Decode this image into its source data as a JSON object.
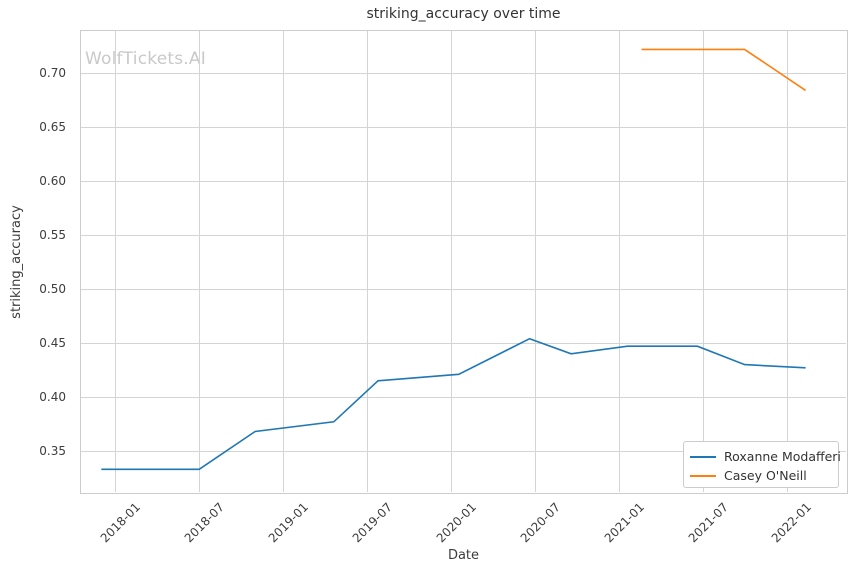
{
  "chart_data": {
    "type": "line",
    "title": "striking_accuracy over time",
    "xlabel": "Date",
    "ylabel": "striking_accuracy",
    "watermark": "WolfTickets.AI",
    "grid": true,
    "legend_position": "lower right",
    "x_tick_labels": [
      "2018-01",
      "2018-07",
      "2019-01",
      "2019-07",
      "2020-01",
      "2020-07",
      "2021-01",
      "2021-07",
      "2022-01"
    ],
    "y_tick_labels": [
      "0.35",
      "0.40",
      "0.45",
      "0.50",
      "0.55",
      "0.60",
      "0.65",
      "0.70"
    ],
    "xlim": [
      2017.79,
      2022.36
    ],
    "ylim": [
      0.311,
      0.74
    ],
    "grid_color": "#d4d4d4",
    "spine_color": "#cccccc",
    "series": [
      {
        "name": "Roxanne Modafferi",
        "color": "#1f77b4",
        "points": [
          [
            "2017-12",
            0.333
          ],
          [
            "2018-07",
            0.333
          ],
          [
            "2018-11",
            0.368
          ],
          [
            "2019-04-20",
            0.377
          ],
          [
            "2019-07-25",
            0.415
          ],
          [
            "2020-01-18",
            0.421
          ],
          [
            "2020-06-20",
            0.454
          ],
          [
            "2020-09-19",
            0.44
          ],
          [
            "2021-01-20",
            0.447
          ],
          [
            "2021-06-20",
            0.447
          ],
          [
            "2021-10",
            0.43
          ],
          [
            "2022-02-12",
            0.427
          ]
        ]
      },
      {
        "name": "Casey O'Neill",
        "color": "#ff7f0e",
        "points": [
          [
            "2021-02-20",
            0.722
          ],
          [
            "2021-10",
            0.722
          ],
          [
            "2022-02-12",
            0.684
          ]
        ]
      }
    ]
  }
}
